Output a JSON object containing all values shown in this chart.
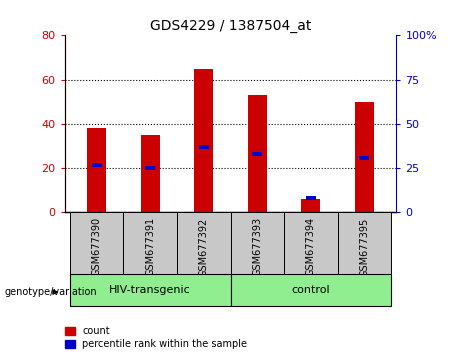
{
  "title": "GDS4229 / 1387504_at",
  "categories": [
    "GSM677390",
    "GSM677391",
    "GSM677392",
    "GSM677393",
    "GSM677394",
    "GSM677395"
  ],
  "count_values": [
    38,
    35,
    65,
    53,
    6,
    50
  ],
  "percentile_values": [
    27,
    25,
    37,
    33,
    8,
    31
  ],
  "left_ylim": [
    0,
    80
  ],
  "right_ylim": [
    0,
    100
  ],
  "left_yticks": [
    0,
    20,
    40,
    60,
    80
  ],
  "right_yticks": [
    0,
    25,
    50,
    75,
    100
  ],
  "bar_color": "#cc0000",
  "percentile_color": "#0000cc",
  "bar_width": 0.35,
  "groups": [
    {
      "label": "HIV-transgenic",
      "start": 0,
      "end": 2,
      "color": "#90ee90"
    },
    {
      "label": "control",
      "start": 3,
      "end": 5,
      "color": "#90ee90"
    }
  ],
  "group_label_prefix": "genotype/variation",
  "xlabel_area_color": "#c8c8c8",
  "grid_linestyle": ":",
  "grid_color": "black",
  "legend_count_label": "count",
  "legend_percentile_label": "percentile rank within the sample",
  "right_yaxis_color": "#0000cc",
  "left_yaxis_color": "#cc0000"
}
